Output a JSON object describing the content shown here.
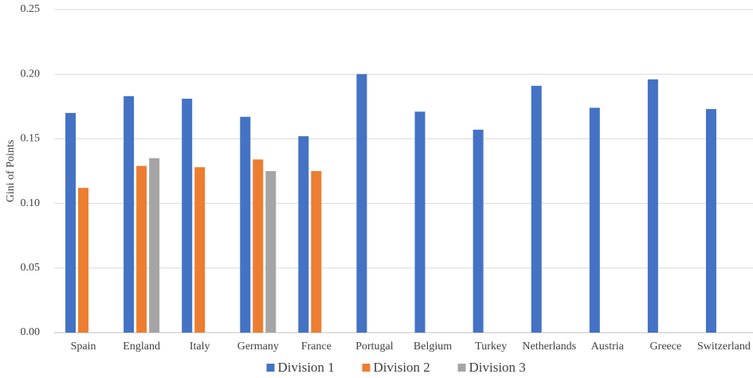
{
  "chart_data": {
    "type": "bar",
    "y_label": "Gini of Points",
    "categories": [
      "Spain",
      "England",
      "Italy",
      "Germany",
      "France",
      "Portugal",
      "Belgium",
      "Turkey",
      "Netherlands",
      "Austria",
      "Greece",
      "Switzerland"
    ],
    "series": [
      {
        "name": "Division 1",
        "color": "#4472c4",
        "values": [
          0.17,
          0.183,
          0.181,
          0.167,
          0.152,
          0.2,
          0.171,
          0.157,
          0.191,
          0.174,
          0.196,
          0.173
        ]
      },
      {
        "name": "Division 2",
        "color": "#ed7d31",
        "values": [
          0.112,
          0.129,
          0.128,
          0.134,
          0.125,
          null,
          null,
          null,
          null,
          null,
          null,
          null
        ]
      },
      {
        "name": "Division 3",
        "color": "#a5a5a5",
        "values": [
          null,
          0.135,
          null,
          0.125,
          null,
          null,
          null,
          null,
          null,
          null,
          null,
          null
        ]
      }
    ],
    "ylim": [
      0,
      0.25
    ],
    "yticks": [
      {
        "value": 0,
        "label": "0.00"
      },
      {
        "value": 0.05,
        "label": "0.05"
      },
      {
        "value": 0.1,
        "label": "0.10"
      },
      {
        "value": 0.15,
        "label": "0.15"
      },
      {
        "value": 0.2,
        "label": "0.20"
      },
      {
        "value": 0.25,
        "label": "0.25"
      }
    ],
    "grid": true,
    "legend": "bottom"
  }
}
